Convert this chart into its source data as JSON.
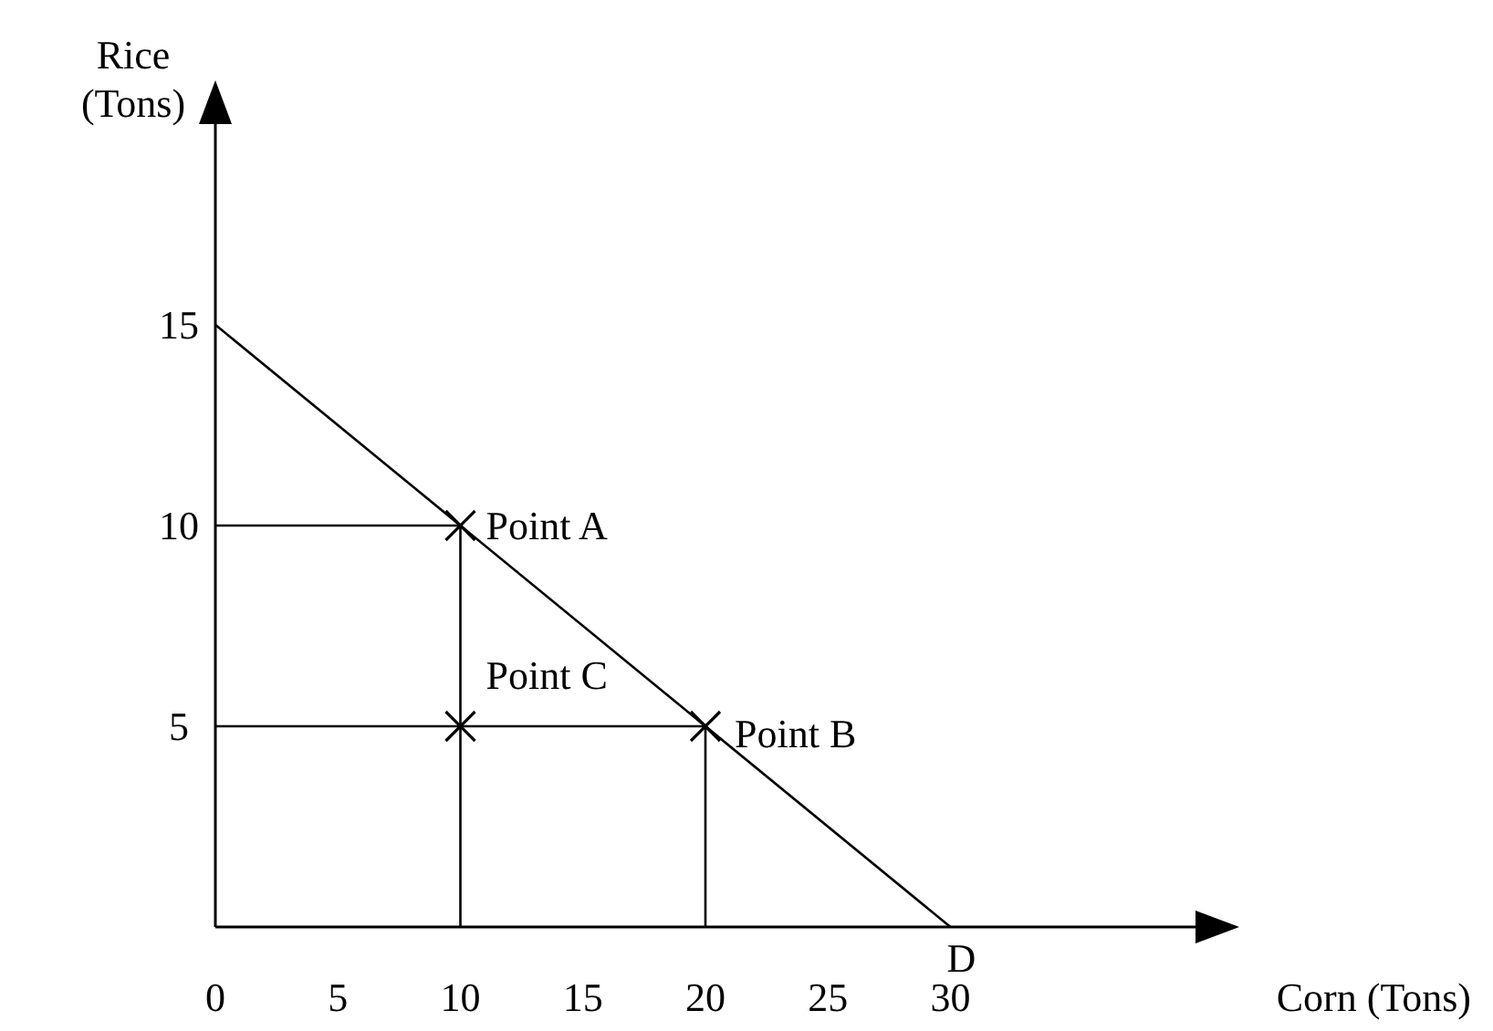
{
  "chart_data": {
    "type": "line",
    "xlabel": "Corn (Tons)",
    "ylabel": "Rice (Tons)",
    "xlim": [
      0,
      40
    ],
    "ylim": [
      0,
      20
    ],
    "xticks": [
      0,
      5,
      10,
      15,
      20,
      25,
      30
    ],
    "yticks": [
      5,
      10,
      15
    ],
    "grid": false,
    "series": [
      {
        "color": "#000000",
        "x": [
          0,
          30
        ],
        "values": [
          15,
          0
        ]
      },
      {
        "color": "#000000",
        "x": [
          0,
          10,
          10
        ],
        "values": [
          10,
          10,
          0
        ]
      },
      {
        "color": "#000000",
        "x": [
          0,
          20,
          20
        ],
        "values": [
          5,
          5,
          0
        ]
      },
      {
        "type": "scatter",
        "color": "#000000",
        "marker": "cross",
        "x": [
          10,
          20,
          10
        ],
        "values": [
          10,
          5,
          5
        ]
      }
    ],
    "annotations": [
      {
        "text": "Point A",
        "x": 10,
        "y": 10
      },
      {
        "text": "Point B",
        "x": 20,
        "y": 5
      },
      {
        "text": "Point C",
        "x": 10,
        "y": 5
      },
      {
        "text": "D",
        "x": 30,
        "y": 0
      }
    ]
  }
}
